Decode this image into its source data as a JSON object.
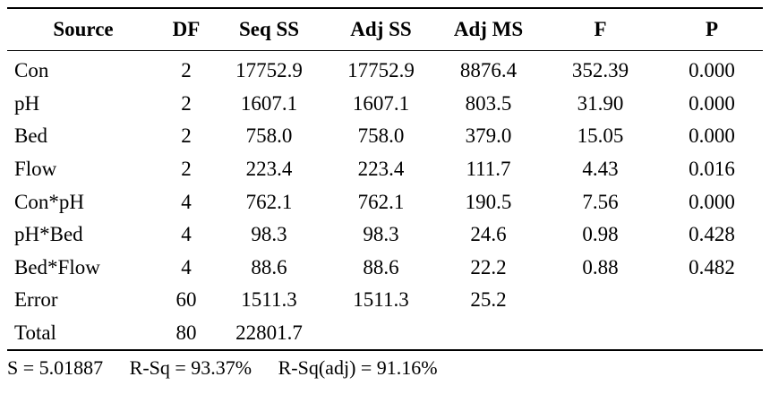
{
  "table": {
    "headers": [
      "Source",
      "DF",
      "Seq SS",
      "Adj SS",
      "Adj MS",
      "F",
      "P"
    ],
    "rows": [
      [
        "Con",
        "2",
        "17752.9",
        "17752.9",
        "8876.4",
        "352.39",
        "0.000"
      ],
      [
        "pH",
        "2",
        "1607.1",
        "1607.1",
        "803.5",
        "31.90",
        "0.000"
      ],
      [
        "Bed",
        "2",
        "758.0",
        "758.0",
        "379.0",
        "15.05",
        "0.000"
      ],
      [
        "Flow",
        "2",
        "223.4",
        "223.4",
        "111.7",
        "4.43",
        "0.016"
      ],
      [
        "Con*pH",
        "4",
        "762.1",
        "762.1",
        "190.5",
        "7.56",
        "0.000"
      ],
      [
        "pH*Bed",
        "4",
        "98.3",
        "98.3",
        "24.6",
        "0.98",
        "0.428"
      ],
      [
        "Bed*Flow",
        "4",
        "88.6",
        "88.6",
        "22.2",
        "0.88",
        "0.482"
      ],
      [
        "Error",
        "60",
        "1511.3",
        "1511.3",
        "25.2",
        "",
        ""
      ],
      [
        "Total",
        "80",
        "22801.7",
        "",
        "",
        "",
        ""
      ]
    ]
  },
  "summary": {
    "s": "S = 5.01887",
    "rsq": "R-Sq = 93.37%",
    "rsq_adj": "R-Sq(adj) = 91.16%"
  }
}
